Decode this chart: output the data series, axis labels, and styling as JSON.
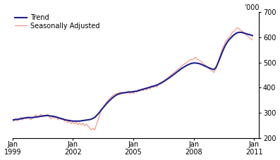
{
  "title": "",
  "ylabel_right": "’000",
  "ylim": [
    200,
    700
  ],
  "yticks": [
    200,
    300,
    400,
    500,
    600,
    700
  ],
  "trend_color": "#1f1f8c",
  "seasonal_color": "#f0917a",
  "trend_linewidth": 1.5,
  "seasonal_linewidth": 0.8,
  "background_color": "#ffffff",
  "legend_entries": [
    "Trend",
    "Seasonally Adjusted"
  ],
  "trend_data": [
    272,
    272,
    273,
    274,
    275,
    276,
    278,
    279,
    280,
    281,
    281,
    281,
    281,
    282,
    283,
    284,
    285,
    286,
    287,
    288,
    289,
    289,
    288,
    287,
    286,
    285,
    283,
    281,
    279,
    277,
    275,
    273,
    271,
    270,
    269,
    268,
    267,
    267,
    267,
    267,
    267,
    268,
    269,
    270,
    271,
    272,
    273,
    275,
    278,
    282,
    288,
    295,
    303,
    312,
    320,
    328,
    336,
    343,
    350,
    356,
    362,
    367,
    371,
    374,
    376,
    378,
    379,
    380,
    381,
    382,
    383,
    383,
    384,
    385,
    386,
    388,
    390,
    392,
    394,
    396,
    398,
    400,
    402,
    404,
    406,
    408,
    410,
    413,
    416,
    420,
    424,
    428,
    433,
    437,
    442,
    447,
    452,
    457,
    462,
    467,
    472,
    477,
    481,
    485,
    489,
    492,
    495,
    497,
    498,
    498,
    497,
    496,
    494,
    491,
    488,
    485,
    482,
    479,
    476,
    474,
    472,
    478,
    490,
    507,
    524,
    541,
    556,
    570,
    581,
    590,
    597,
    604,
    610,
    615,
    618,
    620,
    620,
    619,
    617,
    615,
    613,
    611,
    609,
    607
  ],
  "seasonal_data": [
    265,
    270,
    278,
    268,
    275,
    282,
    272,
    280,
    276,
    284,
    278,
    272,
    280,
    286,
    292,
    280,
    288,
    295,
    284,
    292,
    286,
    294,
    283,
    276,
    284,
    278,
    286,
    272,
    280,
    272,
    278,
    265,
    272,
    260,
    268,
    256,
    263,
    256,
    264,
    252,
    260,
    252,
    258,
    248,
    255,
    248,
    240,
    232,
    238,
    232,
    252,
    270,
    292,
    314,
    322,
    332,
    342,
    350,
    358,
    364,
    370,
    374,
    376,
    378,
    380,
    382,
    376,
    382,
    378,
    386,
    376,
    384,
    376,
    388,
    382,
    392,
    386,
    396,
    388,
    398,
    390,
    402,
    394,
    408,
    400,
    410,
    402,
    415,
    420,
    422,
    426,
    432,
    436,
    442,
    447,
    454,
    458,
    464,
    470,
    474,
    480,
    486,
    492,
    496,
    500,
    506,
    512,
    510,
    516,
    520,
    514,
    510,
    506,
    500,
    494,
    488,
    482,
    476,
    470,
    466,
    460,
    472,
    490,
    512,
    532,
    554,
    568,
    584,
    592,
    600,
    608,
    620,
    624,
    632,
    638,
    634,
    628,
    624,
    618,
    612,
    606,
    600,
    595,
    590
  ]
}
